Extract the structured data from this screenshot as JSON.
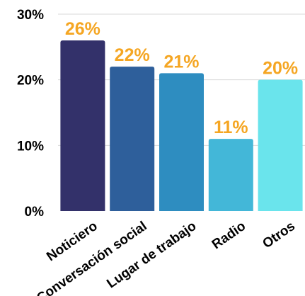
{
  "chart_data": {
    "type": "bar",
    "categories": [
      "Noticiero",
      "Conversación social",
      "Lugar de trabajo",
      "Radio",
      "Otros"
    ],
    "values": [
      26,
      22,
      21,
      11,
      20
    ],
    "data_labels": [
      "26%",
      "22%",
      "21%",
      "11%",
      "20%"
    ],
    "bar_colors": [
      "#33316a",
      "#2e5f9b",
      "#2e8dc0",
      "#43b7d8",
      "#6ae4ec"
    ],
    "label_color": "#f5a623",
    "ylim": [
      0,
      30
    ],
    "yticks": [
      0,
      10,
      20,
      30
    ],
    "ytick_labels": [
      "0%",
      "10%",
      "20%",
      "30%"
    ],
    "grid": true,
    "title": "",
    "xlabel": "",
    "ylabel": ""
  }
}
